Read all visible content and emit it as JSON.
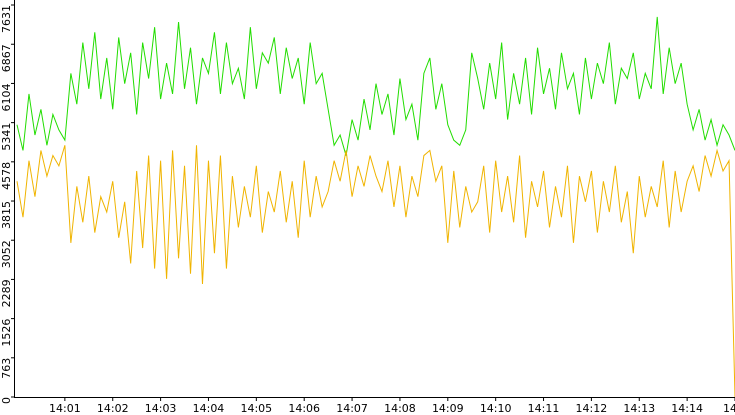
{
  "chart_data": {
    "type": "line",
    "x": [
      0,
      0.125,
      0.25,
      0.375,
      0.5,
      0.625,
      0.75,
      0.875,
      1,
      1.125,
      1.25,
      1.375,
      1.5,
      1.625,
      1.75,
      1.875,
      2,
      2.125,
      2.25,
      2.375,
      2.5,
      2.625,
      2.75,
      2.875,
      3,
      3.125,
      3.25,
      3.375,
      3.5,
      3.625,
      3.75,
      3.875,
      4,
      4.125,
      4.25,
      4.375,
      4.5,
      4.625,
      4.75,
      4.875,
      5,
      5.125,
      5.25,
      5.375,
      5.5,
      5.625,
      5.75,
      5.875,
      6,
      6.125,
      6.25,
      6.375,
      6.5,
      6.625,
      6.75,
      6.875,
      7,
      7.125,
      7.25,
      7.375,
      7.5,
      7.625,
      7.75,
      7.875,
      8,
      8.125,
      8.25,
      8.375,
      8.5,
      8.625,
      8.75,
      8.875,
      9,
      9.125,
      9.25,
      9.375,
      9.5,
      9.625,
      9.75,
      9.875,
      10,
      10.125,
      10.25,
      10.375,
      10.5,
      10.625,
      10.75,
      10.875,
      11,
      11.125,
      11.25,
      11.375,
      11.5,
      11.625,
      11.75,
      11.875,
      12,
      12.125,
      12.25,
      12.375,
      12.5,
      12.625,
      12.75,
      12.875,
      13,
      13.125,
      13.25,
      13.375,
      13.5,
      13.625,
      13.75,
      13.875,
      14,
      14.125,
      14.25,
      14.375,
      14.5,
      14.625,
      14.75,
      14.875,
      15
    ],
    "series": [
      {
        "color": "#22dd00",
        "values": [
          5300,
          4800,
          5900,
          5100,
          5600,
          4900,
          5500,
          5200,
          5000,
          6300,
          5700,
          6900,
          6000,
          7100,
          5800,
          6600,
          5600,
          7000,
          6100,
          6700,
          5500,
          6900,
          6200,
          7200,
          5800,
          6500,
          5900,
          7300,
          6000,
          6800,
          5700,
          6600,
          6300,
          7100,
          5900,
          6900,
          6100,
          6400,
          5800,
          7200,
          6000,
          6700,
          6500,
          7000,
          5900,
          6800,
          6200,
          6600,
          5700,
          6900,
          6100,
          6300,
          5600,
          4900,
          5100,
          4700,
          5400,
          5000,
          5800,
          5200,
          6100,
          5500,
          5900,
          5100,
          6200,
          5400,
          5700,
          5000,
          6300,
          6600,
          5600,
          6100,
          5300,
          5000,
          4900,
          5200,
          6700,
          6200,
          5600,
          6500,
          5800,
          6900,
          5400,
          6300,
          5700,
          6600,
          5500,
          6800,
          5900,
          6400,
          5600,
          6700,
          6000,
          6300,
          5500,
          6600,
          5800,
          6500,
          6100,
          6900,
          5700,
          6400,
          6200,
          6700,
          5800,
          6300,
          6000,
          7400,
          5900,
          6800,
          6100,
          6500,
          5700,
          5200,
          5600,
          5000,
          5400,
          4900,
          5300,
          5100,
          4800
        ]
      },
      {
        "color": "#f0b400",
        "values": [
          4200,
          3500,
          4600,
          3900,
          4800,
          4300,
          4700,
          4500,
          4900,
          3000,
          4100,
          3400,
          4300,
          3200,
          3900,
          3600,
          4200,
          3100,
          3800,
          2600,
          4400,
          2900,
          4700,
          2500,
          4600,
          2300,
          4800,
          2700,
          4500,
          2400,
          4900,
          2200,
          4600,
          2800,
          4700,
          2500,
          4300,
          3300,
          4100,
          3500,
          4500,
          3200,
          4000,
          3600,
          4400,
          3400,
          4200,
          3100,
          4600,
          3500,
          4300,
          3700,
          4000,
          4600,
          4200,
          4800,
          3900,
          4500,
          4100,
          4700,
          4300,
          4000,
          4600,
          3700,
          4500,
          3500,
          4300,
          3900,
          4700,
          4800,
          4200,
          4500,
          3000,
          4400,
          3300,
          4100,
          3600,
          3800,
          4500,
          3200,
          4600,
          3600,
          4300,
          3400,
          4700,
          3100,
          4200,
          3700,
          4400,
          3300,
          4100,
          3500,
          4500,
          3000,
          4300,
          3800,
          4400,
          3200,
          4200,
          3600,
          4500,
          3400,
          4000,
          2800,
          4300,
          3500,
          4100,
          3700,
          4600,
          3300,
          4400,
          3600,
          4200,
          4500,
          4000,
          4700,
          4300,
          4800,
          4400,
          4600,
          0
        ]
      }
    ],
    "xlim": [
      0,
      15
    ],
    "xticks": [
      {
        "value": 1,
        "label": "14:01"
      },
      {
        "value": 2,
        "label": "14:02"
      },
      {
        "value": 3,
        "label": "14:03"
      },
      {
        "value": 4,
        "label": "14:04"
      },
      {
        "value": 5,
        "label": "14:05"
      },
      {
        "value": 6,
        "label": "14:06"
      },
      {
        "value": 7,
        "label": "14:07"
      },
      {
        "value": 8,
        "label": "14:08"
      },
      {
        "value": 9,
        "label": "14:09"
      },
      {
        "value": 10,
        "label": "14:10"
      },
      {
        "value": 11,
        "label": "14:11"
      },
      {
        "value": 12,
        "label": "14:12"
      },
      {
        "value": 13,
        "label": "14:13"
      },
      {
        "value": 14,
        "label": "14:14"
      },
      {
        "value": 15,
        "label": "14"
      }
    ],
    "ylim": [
      0,
      7631
    ],
    "yticks": [
      0,
      763,
      1526,
      2289,
      3052,
      3815,
      4578,
      5341,
      6104,
      6867,
      7631
    ]
  }
}
